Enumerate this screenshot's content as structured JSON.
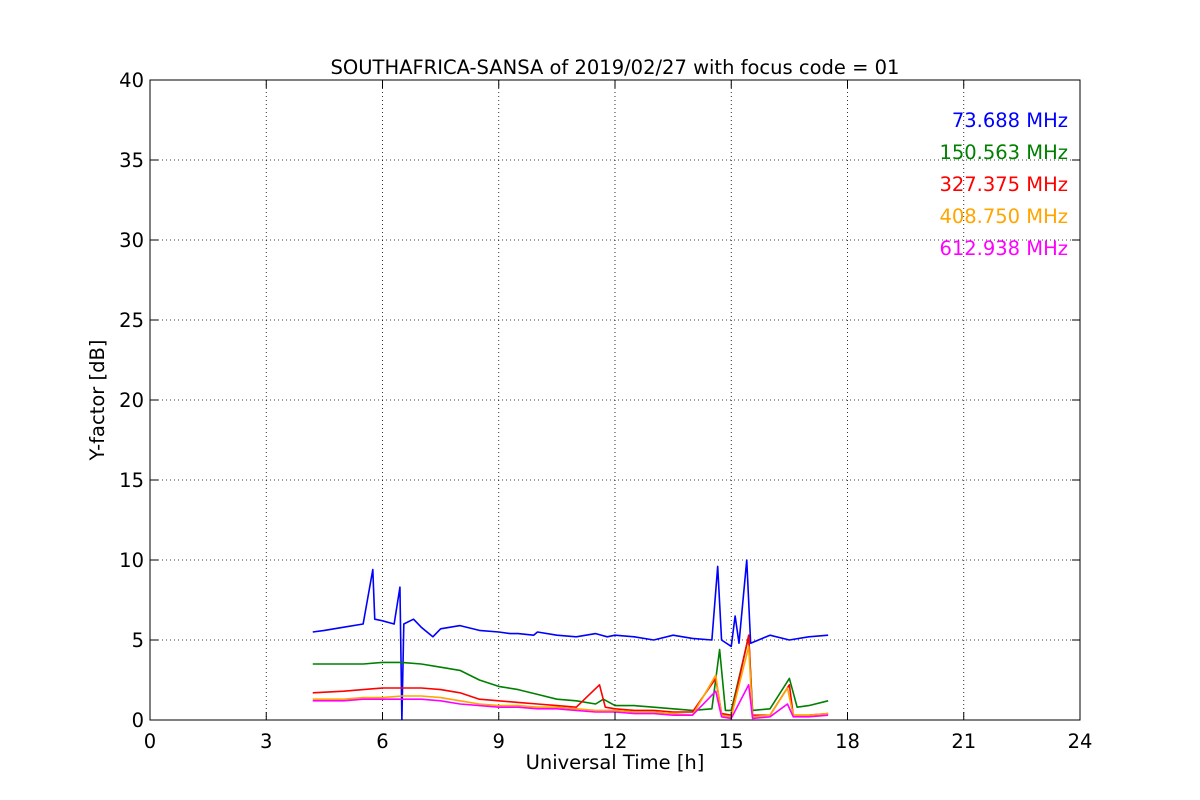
{
  "chart_data": {
    "type": "line",
    "title": "SOUTHAFRICA-SANSA of 2019/02/27 with focus code = 01",
    "xlabel": "Universal Time [h]",
    "ylabel": "Y-factor [dB]",
    "xlim": [
      0,
      24
    ],
    "ylim": [
      0,
      40
    ],
    "xticks": [
      0,
      3,
      6,
      9,
      12,
      15,
      18,
      21,
      24
    ],
    "yticks": [
      0,
      5,
      10,
      15,
      20,
      25,
      30,
      35,
      40
    ],
    "grid": true,
    "legend_position": "top-right",
    "series": [
      {
        "name": "73.688 MHz",
        "color": "#0000ff",
        "points": [
          [
            4.2,
            5.5
          ],
          [
            4.5,
            5.6
          ],
          [
            5.0,
            5.8
          ],
          [
            5.5,
            6.0
          ],
          [
            5.75,
            9.4
          ],
          [
            5.8,
            6.3
          ],
          [
            6.0,
            6.2
          ],
          [
            6.3,
            6.0
          ],
          [
            6.45,
            8.3
          ],
          [
            6.5,
            0.0
          ],
          [
            6.55,
            6.0
          ],
          [
            6.8,
            6.3
          ],
          [
            7.0,
            5.8
          ],
          [
            7.3,
            5.2
          ],
          [
            7.5,
            5.7
          ],
          [
            8.0,
            5.9
          ],
          [
            8.5,
            5.6
          ],
          [
            9.0,
            5.5
          ],
          [
            9.3,
            5.4
          ],
          [
            9.5,
            5.4
          ],
          [
            9.9,
            5.3
          ],
          [
            10.0,
            5.5
          ],
          [
            10.5,
            5.3
          ],
          [
            11.0,
            5.2
          ],
          [
            11.5,
            5.4
          ],
          [
            11.8,
            5.2
          ],
          [
            12.0,
            5.3
          ],
          [
            12.5,
            5.2
          ],
          [
            13.0,
            5.0
          ],
          [
            13.5,
            5.3
          ],
          [
            14.0,
            5.1
          ],
          [
            14.5,
            5.0
          ],
          [
            14.65,
            9.6
          ],
          [
            14.75,
            5.0
          ],
          [
            15.0,
            4.6
          ],
          [
            15.1,
            6.5
          ],
          [
            15.2,
            4.8
          ],
          [
            15.4,
            10.0
          ],
          [
            15.5,
            4.8
          ],
          [
            16.0,
            5.3
          ],
          [
            16.5,
            5.0
          ],
          [
            17.0,
            5.2
          ],
          [
            17.5,
            5.3
          ]
        ]
      },
      {
        "name": "150.563 MHz",
        "color": "#008000",
        "points": [
          [
            4.2,
            3.5
          ],
          [
            5.0,
            3.5
          ],
          [
            5.5,
            3.5
          ],
          [
            6.0,
            3.6
          ],
          [
            6.5,
            3.6
          ],
          [
            7.0,
            3.5
          ],
          [
            7.5,
            3.3
          ],
          [
            8.0,
            3.1
          ],
          [
            8.5,
            2.5
          ],
          [
            9.0,
            2.1
          ],
          [
            9.5,
            1.9
          ],
          [
            10.0,
            1.6
          ],
          [
            10.5,
            1.3
          ],
          [
            11.0,
            1.2
          ],
          [
            11.5,
            1.0
          ],
          [
            11.7,
            1.3
          ],
          [
            12.0,
            0.9
          ],
          [
            12.5,
            0.9
          ],
          [
            13.0,
            0.8
          ],
          [
            13.5,
            0.7
          ],
          [
            14.0,
            0.6
          ],
          [
            14.5,
            0.7
          ],
          [
            14.7,
            4.4
          ],
          [
            14.85,
            0.6
          ],
          [
            15.0,
            0.6
          ],
          [
            15.45,
            5.2
          ],
          [
            15.55,
            0.6
          ],
          [
            16.0,
            0.7
          ],
          [
            16.5,
            2.6
          ],
          [
            16.7,
            0.8
          ],
          [
            17.0,
            0.9
          ],
          [
            17.5,
            1.2
          ]
        ]
      },
      {
        "name": "327.375 MHz",
        "color": "#ff0000",
        "points": [
          [
            4.2,
            1.7
          ],
          [
            5.0,
            1.8
          ],
          [
            5.5,
            1.9
          ],
          [
            6.0,
            2.0
          ],
          [
            6.5,
            2.0
          ],
          [
            7.0,
            2.0
          ],
          [
            7.5,
            1.9
          ],
          [
            8.0,
            1.7
          ],
          [
            8.5,
            1.3
          ],
          [
            9.0,
            1.2
          ],
          [
            9.5,
            1.1
          ],
          [
            10.0,
            1.0
          ],
          [
            10.5,
            0.9
          ],
          [
            11.0,
            0.8
          ],
          [
            11.6,
            2.2
          ],
          [
            11.75,
            0.8
          ],
          [
            12.0,
            0.7
          ],
          [
            12.5,
            0.6
          ],
          [
            13.0,
            0.6
          ],
          [
            13.5,
            0.5
          ],
          [
            14.0,
            0.5
          ],
          [
            14.6,
            2.6
          ],
          [
            14.75,
            0.4
          ],
          [
            15.0,
            0.3
          ],
          [
            15.45,
            5.3
          ],
          [
            15.55,
            0.3
          ],
          [
            16.0,
            0.3
          ],
          [
            16.5,
            2.2
          ],
          [
            16.6,
            0.3
          ],
          [
            17.0,
            0.3
          ],
          [
            17.5,
            0.4
          ]
        ]
      },
      {
        "name": "408.750 MHz",
        "color": "#ffa500",
        "points": [
          [
            4.2,
            1.3
          ],
          [
            5.0,
            1.3
          ],
          [
            5.5,
            1.4
          ],
          [
            6.0,
            1.4
          ],
          [
            6.5,
            1.5
          ],
          [
            7.0,
            1.5
          ],
          [
            7.5,
            1.4
          ],
          [
            8.0,
            1.2
          ],
          [
            8.5,
            1.0
          ],
          [
            9.0,
            0.9
          ],
          [
            9.5,
            0.9
          ],
          [
            10.0,
            0.8
          ],
          [
            10.5,
            0.8
          ],
          [
            11.0,
            0.7
          ],
          [
            11.5,
            0.6
          ],
          [
            12.0,
            0.6
          ],
          [
            12.5,
            0.5
          ],
          [
            13.0,
            0.5
          ],
          [
            13.5,
            0.4
          ],
          [
            14.0,
            0.3
          ],
          [
            14.6,
            2.8
          ],
          [
            14.75,
            0.3
          ],
          [
            15.0,
            0.2
          ],
          [
            15.45,
            4.6
          ],
          [
            15.55,
            0.2
          ],
          [
            16.0,
            0.3
          ],
          [
            16.45,
            2.0
          ],
          [
            16.6,
            0.3
          ],
          [
            17.0,
            0.3
          ],
          [
            17.5,
            0.4
          ]
        ]
      },
      {
        "name": "612.938 MHz",
        "color": "#ff00ff",
        "points": [
          [
            4.2,
            1.2
          ],
          [
            5.0,
            1.2
          ],
          [
            5.5,
            1.3
          ],
          [
            6.0,
            1.3
          ],
          [
            6.5,
            1.3
          ],
          [
            7.0,
            1.3
          ],
          [
            7.5,
            1.2
          ],
          [
            8.0,
            1.0
          ],
          [
            8.5,
            0.9
          ],
          [
            9.0,
            0.8
          ],
          [
            9.5,
            0.8
          ],
          [
            10.0,
            0.7
          ],
          [
            10.5,
            0.7
          ],
          [
            11.0,
            0.6
          ],
          [
            11.5,
            0.5
          ],
          [
            12.0,
            0.5
          ],
          [
            12.5,
            0.4
          ],
          [
            13.0,
            0.4
          ],
          [
            13.5,
            0.3
          ],
          [
            14.0,
            0.3
          ],
          [
            14.6,
            1.8
          ],
          [
            14.75,
            0.2
          ],
          [
            15.0,
            0.1
          ],
          [
            15.45,
            2.2
          ],
          [
            15.55,
            0.1
          ],
          [
            16.0,
            0.2
          ],
          [
            16.45,
            1.0
          ],
          [
            16.6,
            0.2
          ],
          [
            17.0,
            0.2
          ],
          [
            17.5,
            0.3
          ]
        ]
      }
    ]
  }
}
